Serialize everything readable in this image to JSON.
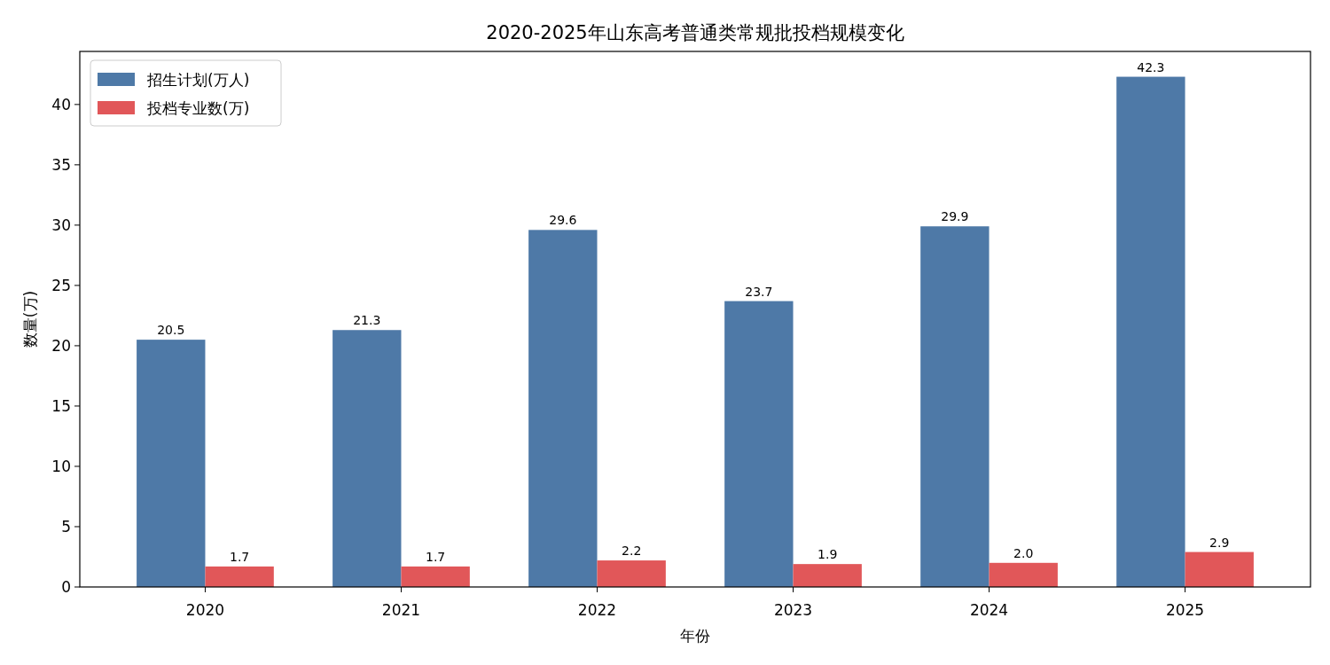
{
  "chart_data": {
    "type": "bar",
    "title": "2020-2025年山东高考普通类常规批投档规模变化",
    "xlabel": "年份",
    "ylabel": "数量(万)",
    "categories": [
      "2020",
      "2021",
      "2022",
      "2023",
      "2024",
      "2025"
    ],
    "series": [
      {
        "name": "招生计划(万人)",
        "color": "#4e79a7",
        "values": [
          20.5,
          21.3,
          29.6,
          23.7,
          29.9,
          42.3
        ],
        "value_labels": [
          "20.5",
          "21.3",
          "29.6",
          "23.7",
          "29.9",
          "42.3"
        ]
      },
      {
        "name": "投档专业数(万)",
        "color": "#e15759",
        "values": [
          1.7,
          1.7,
          2.2,
          1.9,
          2.0,
          2.9
        ],
        "value_labels": [
          "1.7",
          "1.7",
          "2.2",
          "1.9",
          "2.0",
          "2.9"
        ]
      }
    ],
    "ylim": [
      0,
      44.4
    ],
    "yticks": [
      0,
      5,
      10,
      15,
      20,
      25,
      30,
      35,
      40
    ],
    "legend": "top left",
    "grid": false
  }
}
